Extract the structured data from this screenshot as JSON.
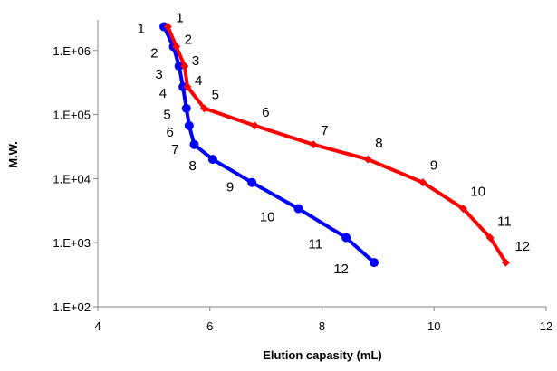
{
  "chart_data": {
    "type": "line",
    "title": "",
    "xlabel": "Elution capasity (mL)",
    "ylabel": "M.W.",
    "xlim": [
      4,
      12
    ],
    "ylim": [
      100,
      3000000
    ],
    "y_scale": "log",
    "grid": false,
    "legend": "none",
    "x_ticks": [
      "4",
      "6",
      "8",
      "10",
      "12"
    ],
    "y_ticks": [
      "1.E+02",
      "1.E+03",
      "1.E+04",
      "1.E+05",
      "1.E+06"
    ],
    "series": [
      {
        "color": "#0000ff",
        "marker": "circle",
        "labels": [
          "1",
          "2",
          "3",
          "4",
          "5",
          "6",
          "7",
          "8",
          "9",
          "10",
          "11",
          "12"
        ],
        "x": [
          5.18,
          5.35,
          5.45,
          5.52,
          5.58,
          5.63,
          5.72,
          6.05,
          6.75,
          7.58,
          8.43,
          8.93
        ],
        "y": [
          2350000,
          1150000,
          570000,
          270000,
          125000,
          67000,
          34000,
          20000,
          8700,
          3400,
          1200,
          490
        ]
      },
      {
        "color": "#ff0000",
        "marker": "diamond",
        "labels": [
          "1",
          "2",
          "3",
          "4",
          "5",
          "6",
          "7",
          "8",
          "9",
          "10",
          "11",
          "12"
        ],
        "x": [
          5.25,
          5.4,
          5.55,
          5.6,
          5.9,
          6.8,
          7.85,
          8.82,
          9.8,
          10.52,
          11.0,
          11.28
        ],
        "y": [
          2350000,
          1150000,
          570000,
          270000,
          125000,
          67000,
          34000,
          20000,
          8700,
          3400,
          1200,
          490
        ]
      }
    ]
  }
}
